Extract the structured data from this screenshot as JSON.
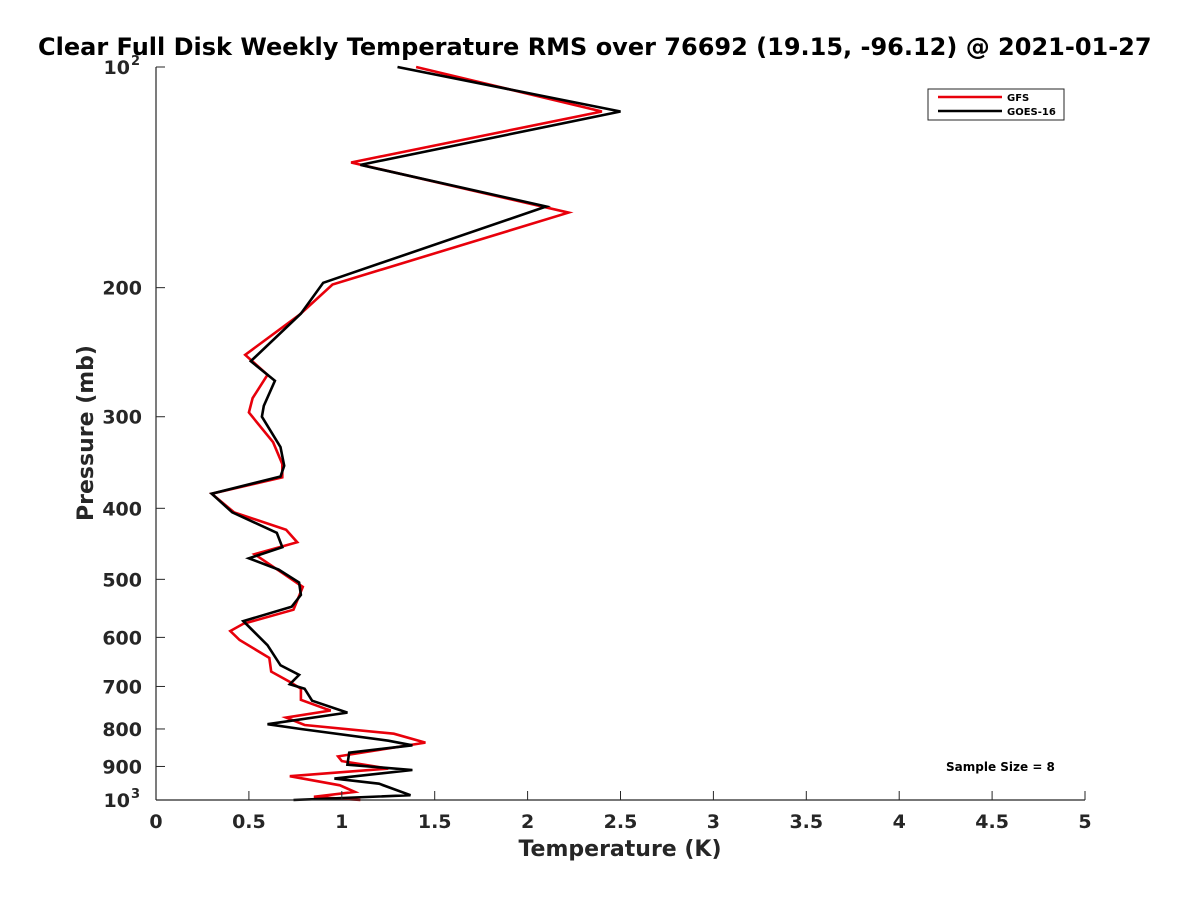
{
  "chart_data": {
    "type": "line",
    "title": "Clear Full Disk Weekly Temperature RMS over 76692 (19.15, -96.12) @ 2021-01-27",
    "xlabel": "Temperature (K)",
    "ylabel": "Pressure (mb)",
    "xlim": [
      0,
      5
    ],
    "ylim": [
      100,
      1000
    ],
    "yscale": "log",
    "yreversed": true,
    "x_ticks": [
      0,
      0.5,
      1,
      1.5,
      2,
      2.5,
      3,
      3.5,
      4,
      4.5,
      5
    ],
    "x_tick_labels": [
      "0",
      "0.5",
      "1",
      "1.5",
      "2",
      "2.5",
      "3",
      "3.5",
      "4",
      "4.5",
      "5"
    ],
    "y_ticks": [
      {
        "value": 100,
        "label": "10",
        "sup": "2"
      },
      {
        "value": 200,
        "label": "200",
        "sup": ""
      },
      {
        "value": 300,
        "label": "300",
        "sup": ""
      },
      {
        "value": 400,
        "label": "400",
        "sup": ""
      },
      {
        "value": 500,
        "label": "500",
        "sup": ""
      },
      {
        "value": 600,
        "label": "600",
        "sup": ""
      },
      {
        "value": 700,
        "label": "700",
        "sup": ""
      },
      {
        "value": 800,
        "label": "800",
        "sup": ""
      },
      {
        "value": 900,
        "label": "900",
        "sup": ""
      },
      {
        "value": 1000,
        "label": "10",
        "sup": "3"
      }
    ],
    "legend_position": "top-right",
    "annotation": "Sample Size = 8",
    "series": [
      {
        "name": "GFS",
        "color": "#e8000b",
        "points": [
          [
            1.4,
            100
          ],
          [
            2.4,
            115
          ],
          [
            1.05,
            135
          ],
          [
            2.22,
            158
          ],
          [
            0.95,
            198
          ],
          [
            0.77,
            218
          ],
          [
            0.48,
            247
          ],
          [
            0.6,
            263
          ],
          [
            0.52,
            283
          ],
          [
            0.5,
            296
          ],
          [
            0.63,
            325
          ],
          [
            0.68,
            348
          ],
          [
            0.68,
            363
          ],
          [
            0.3,
            382
          ],
          [
            0.42,
            405
          ],
          [
            0.7,
            428
          ],
          [
            0.76,
            445
          ],
          [
            0.53,
            462
          ],
          [
            0.68,
            490
          ],
          [
            0.79,
            512
          ],
          [
            0.74,
            550
          ],
          [
            0.47,
            575
          ],
          [
            0.4,
            588
          ],
          [
            0.45,
            605
          ],
          [
            0.61,
            640
          ],
          [
            0.62,
            668
          ],
          [
            0.72,
            690
          ],
          [
            0.78,
            705
          ],
          [
            0.78,
            730
          ],
          [
            0.92,
            752
          ],
          [
            0.94,
            755
          ],
          [
            0.7,
            772
          ],
          [
            0.8,
            790
          ],
          [
            1.28,
            812
          ],
          [
            1.45,
            835
          ],
          [
            0.98,
            872
          ],
          [
            1.0,
            885
          ],
          [
            1.25,
            906
          ],
          [
            0.72,
            928
          ],
          [
            0.99,
            955
          ],
          [
            1.07,
            975
          ],
          [
            0.85,
            990
          ],
          [
            1.1,
            1000
          ]
        ]
      },
      {
        "name": "GOES-16",
        "color": "#000000",
        "points": [
          [
            1.3,
            100
          ],
          [
            2.5,
            115
          ],
          [
            1.1,
            136
          ],
          [
            2.1,
            155
          ],
          [
            0.9,
            197
          ],
          [
            0.78,
            217
          ],
          [
            0.51,
            252
          ],
          [
            0.64,
            268
          ],
          [
            0.58,
            290
          ],
          [
            0.57,
            300
          ],
          [
            0.67,
            330
          ],
          [
            0.69,
            350
          ],
          [
            0.67,
            362
          ],
          [
            0.3,
            382
          ],
          [
            0.41,
            405
          ],
          [
            0.65,
            432
          ],
          [
            0.68,
            452
          ],
          [
            0.5,
            468
          ],
          [
            0.66,
            485
          ],
          [
            0.77,
            505
          ],
          [
            0.78,
            525
          ],
          [
            0.73,
            545
          ],
          [
            0.47,
            570
          ],
          [
            0.6,
            615
          ],
          [
            0.67,
            655
          ],
          [
            0.77,
            675
          ],
          [
            0.72,
            695
          ],
          [
            0.8,
            705
          ],
          [
            0.84,
            732
          ],
          [
            1.03,
            760
          ],
          [
            0.6,
            788
          ],
          [
            0.78,
            800
          ],
          [
            1.25,
            830
          ],
          [
            1.38,
            842
          ],
          [
            1.04,
            862
          ],
          [
            1.03,
            895
          ],
          [
            1.38,
            910
          ],
          [
            0.96,
            935
          ],
          [
            1.2,
            950
          ],
          [
            1.37,
            985
          ],
          [
            0.74,
            1000
          ]
        ]
      }
    ]
  }
}
